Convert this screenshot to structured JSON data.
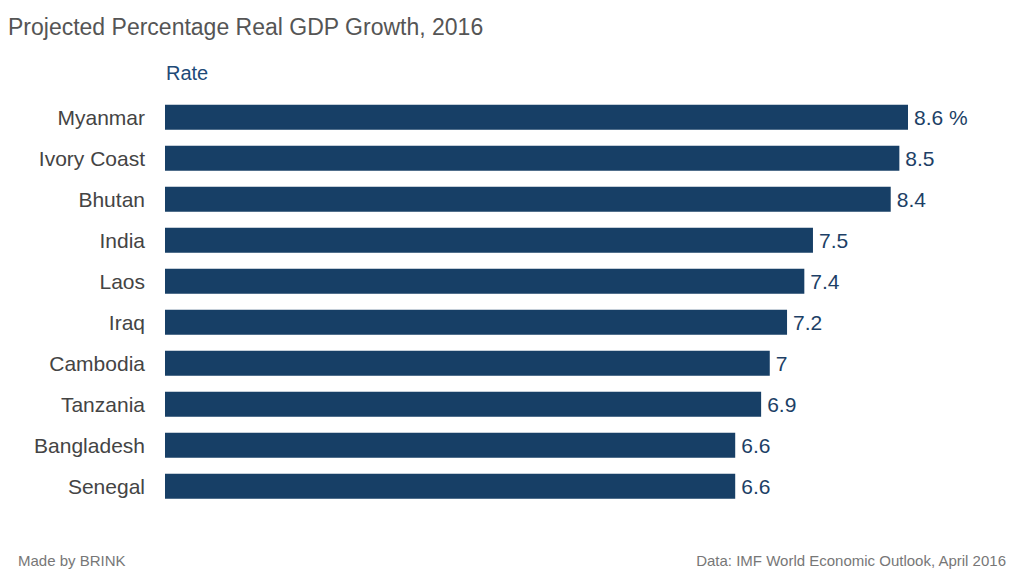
{
  "chart_data": {
    "type": "bar",
    "title": "Projected Percentage Real GDP Growth, 2016",
    "subtitle": "Rate",
    "categories": [
      "Myanmar",
      "Ivory Coast",
      "Bhutan",
      "India",
      "Laos",
      "Iraq",
      "Cambodia",
      "Tanzania",
      "Bangladesh",
      "Senegal"
    ],
    "values": [
      8.6,
      8.5,
      8.4,
      7.5,
      7.4,
      7.2,
      7,
      6.9,
      6.6,
      6.6
    ],
    "value_labels": [
      "8.6 %",
      "8.5",
      "8.4",
      "7.5",
      "7.4",
      "7.2",
      "7",
      "6.9",
      "6.6",
      "6.6"
    ],
    "color": "#173f66",
    "xlim": [
      0,
      8.6
    ],
    "orientation": "horizontal",
    "data_labels": true,
    "grid": false,
    "tick_labels": "y",
    "annotations": [
      "Made by BRINK",
      "Data: IMF World Economic Outlook, April 2016"
    ]
  }
}
